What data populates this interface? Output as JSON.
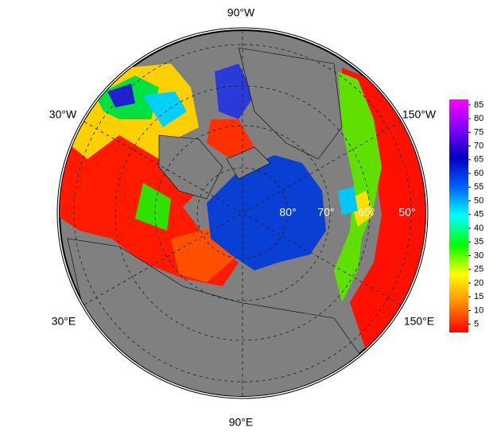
{
  "map": {
    "longitude_labels": [
      "90°W",
      "30°W",
      "150°W",
      "30°E",
      "150°E",
      "90°E"
    ],
    "latitude_labels": [
      "80°",
      "70°",
      "60°",
      "50°"
    ]
  },
  "colorbar": {
    "colors": [
      "#ff0000",
      "#ff8c00",
      "#ffff00",
      "#00ff00",
      "#00ffff",
      "#0060ff",
      "#0000c0",
      "#8000ff",
      "#ff00ff"
    ],
    "lim": [
      2,
      87
    ],
    "ticks": [
      5,
      10,
      15,
      20,
      25,
      30,
      35,
      40,
      45,
      50,
      55,
      60,
      65,
      70,
      75,
      80,
      85
    ]
  }
}
